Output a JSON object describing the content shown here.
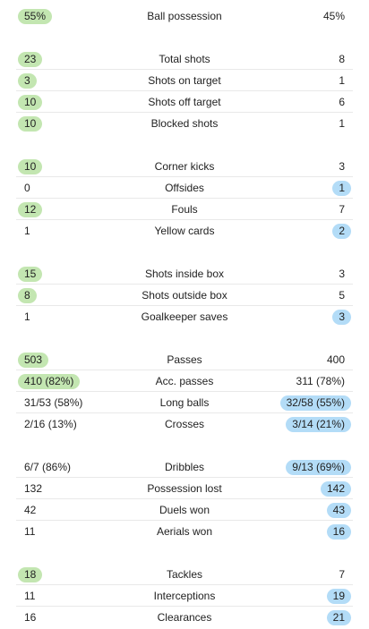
{
  "colors": {
    "home_highlight": "#c3e6b1",
    "away_highlight": "#b3dcf7",
    "divider": "#e9e9e9"
  },
  "sections": [
    {
      "rows": [
        {
          "label": "Ball possession",
          "home": "55%",
          "away": "45%",
          "leader": "home"
        }
      ]
    },
    {
      "rows": [
        {
          "label": "Total shots",
          "home": "23",
          "away": "8",
          "leader": "home"
        },
        {
          "label": "Shots on target",
          "home": "3",
          "away": "1",
          "leader": "home"
        },
        {
          "label": "Shots off target",
          "home": "10",
          "away": "6",
          "leader": "home"
        },
        {
          "label": "Blocked shots",
          "home": "10",
          "away": "1",
          "leader": "home"
        }
      ]
    },
    {
      "rows": [
        {
          "label": "Corner kicks",
          "home": "10",
          "away": "3",
          "leader": "home"
        },
        {
          "label": "Offsides",
          "home": "0",
          "away": "1",
          "leader": "away"
        },
        {
          "label": "Fouls",
          "home": "12",
          "away": "7",
          "leader": "home"
        },
        {
          "label": "Yellow cards",
          "home": "1",
          "away": "2",
          "leader": "away"
        }
      ]
    },
    {
      "rows": [
        {
          "label": "Shots inside box",
          "home": "15",
          "away": "3",
          "leader": "home"
        },
        {
          "label": "Shots outside box",
          "home": "8",
          "away": "5",
          "leader": "home"
        },
        {
          "label": "Goalkeeper saves",
          "home": "1",
          "away": "3",
          "leader": "away"
        }
      ]
    },
    {
      "rows": [
        {
          "label": "Passes",
          "home": "503",
          "away": "400",
          "leader": "home"
        },
        {
          "label": "Acc. passes",
          "home": "410 (82%)",
          "away": "311 (78%)",
          "leader": "home"
        },
        {
          "label": "Long balls",
          "home": "31/53 (58%)",
          "away": "32/58 (55%)",
          "leader": "away"
        },
        {
          "label": "Crosses",
          "home": "2/16 (13%)",
          "away": "3/14 (21%)",
          "leader": "away"
        }
      ]
    },
    {
      "rows": [
        {
          "label": "Dribbles",
          "home": "6/7 (86%)",
          "away": "9/13 (69%)",
          "leader": "away"
        },
        {
          "label": "Possession lost",
          "home": "132",
          "away": "142",
          "leader": "away"
        },
        {
          "label": "Duels won",
          "home": "42",
          "away": "43",
          "leader": "away"
        },
        {
          "label": "Aerials won",
          "home": "11",
          "away": "16",
          "leader": "away"
        }
      ]
    },
    {
      "rows": [
        {
          "label": "Tackles",
          "home": "18",
          "away": "7",
          "leader": "home"
        },
        {
          "label": "Interceptions",
          "home": "11",
          "away": "19",
          "leader": "away"
        },
        {
          "label": "Clearances",
          "home": "16",
          "away": "21",
          "leader": "away"
        }
      ]
    }
  ]
}
